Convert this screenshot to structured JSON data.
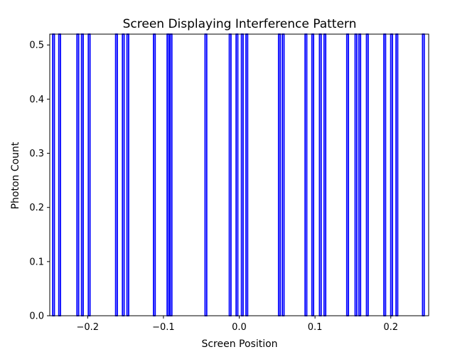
{
  "chart_data": {
    "type": "bar",
    "title": "Screen Displaying Interference Pattern",
    "xlabel": "Screen Position",
    "ylabel": "Photon Count",
    "xlim": [
      -0.25,
      0.25
    ],
    "ylim": [
      0,
      0.52
    ],
    "xticks": [
      -0.2,
      -0.1,
      0.0,
      0.1,
      0.2
    ],
    "xtick_labels": [
      "−0.2",
      "−0.1",
      "0.0",
      "0.1",
      "0.2"
    ],
    "yticks": [
      0.0,
      0.1,
      0.2,
      0.3,
      0.4,
      0.5
    ],
    "ytick_labels": [
      "0.0",
      "0.1",
      "0.2",
      "0.3",
      "0.4",
      "0.5"
    ],
    "grid": false,
    "legend": "none",
    "bar_color": "#0000ff",
    "bar_style": "outline",
    "series": [
      {
        "x": [
          -0.245,
          -0.237,
          -0.213,
          -0.207,
          -0.198,
          -0.162,
          -0.153,
          -0.147,
          -0.112,
          -0.094,
          -0.09,
          -0.044,
          -0.012,
          -0.003,
          0.004,
          0.01,
          0.053,
          0.058,
          0.088,
          0.097,
          0.107,
          0.113,
          0.143,
          0.154,
          0.159,
          0.169,
          0.192,
          0.201,
          0.208,
          0.243
        ],
        "values": [
          0.52,
          0.52,
          0.52,
          0.52,
          0.52,
          0.52,
          0.52,
          0.52,
          0.52,
          0.52,
          0.52,
          0.52,
          0.52,
          0.52,
          0.52,
          0.52,
          0.52,
          0.52,
          0.52,
          0.52,
          0.52,
          0.52,
          0.52,
          0.52,
          0.52,
          0.52,
          0.52,
          0.52,
          0.52,
          0.52
        ]
      }
    ]
  }
}
